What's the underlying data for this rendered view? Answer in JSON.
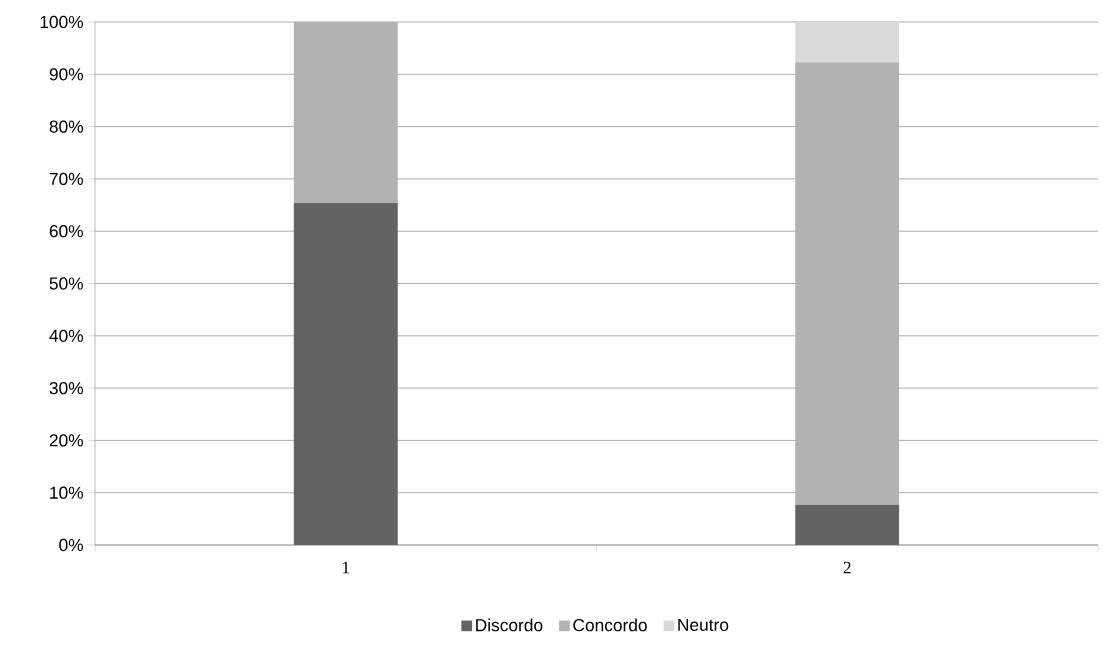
{
  "chart_data": {
    "type": "bar",
    "stacked": true,
    "categories": [
      "1",
      "2"
    ],
    "series": [
      {
        "name": "Discordo",
        "color": "#636363",
        "values": [
          65.4,
          7.7
        ]
      },
      {
        "name": "Concordo",
        "color": "#b2b2b2",
        "values": [
          34.6,
          84.6
        ]
      },
      {
        "name": "Neutro",
        "color": "#d9d9d9",
        "values": [
          0,
          7.7
        ]
      }
    ],
    "ylim": [
      0,
      100
    ],
    "yticks": [
      {
        "value": 0,
        "label": "0%"
      },
      {
        "value": 10,
        "label": "10%"
      },
      {
        "value": 20,
        "label": "20%"
      },
      {
        "value": 30,
        "label": "30%"
      },
      {
        "value": 40,
        "label": "40%"
      },
      {
        "value": 50,
        "label": "50%"
      },
      {
        "value": 60,
        "label": "60%"
      },
      {
        "value": 70,
        "label": "70%"
      },
      {
        "value": 80,
        "label": "80%"
      },
      {
        "value": 90,
        "label": "90%"
      },
      {
        "value": 100,
        "label": "100%"
      }
    ],
    "grid": "y",
    "legend": "bottom"
  }
}
